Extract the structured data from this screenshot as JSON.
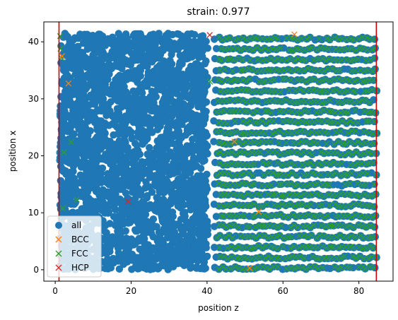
{
  "chart_data": {
    "type": "scatter",
    "title": "strain: 0.977",
    "xlabel": "position z",
    "ylabel": "position x",
    "xlim": [
      -3,
      89
    ],
    "ylim": [
      -2,
      43.5
    ],
    "xticks": [
      0,
      20,
      40,
      60,
      80
    ],
    "yticks": [
      0,
      10,
      20,
      30,
      40
    ],
    "xtick_labels": [
      "0",
      "20",
      "40",
      "60",
      "80"
    ],
    "ytick_labels": [
      "0",
      "10",
      "20",
      "30",
      "40"
    ],
    "grid": false,
    "legend_position": "lower-left",
    "vlines": [
      {
        "x": 1.0,
        "color": "#cc0000"
      },
      {
        "x": 84.6,
        "color": "#cc0000"
      }
    ],
    "disordered_region": {
      "x": [
        1.2,
        40.2
      ],
      "y": [
        0,
        41.5
      ]
    },
    "lattice_region": {
      "x": [
        42,
        84.6
      ],
      "y_start": 0.3,
      "y_end": 41.4,
      "row_spacing": 1.83,
      "row_count": 23,
      "column_spacing": 1.05
    },
    "series": [
      {
        "name": "all",
        "marker": "circle",
        "color": "#1f77b4"
      },
      {
        "name": "BCC",
        "marker": "x",
        "color": "#ff7f0e",
        "points": [
          [
            3.5,
            32.7
          ],
          [
            47.2,
            22.5
          ],
          [
            51.2,
            0.3
          ],
          [
            63.0,
            41.3
          ],
          [
            53.6,
            10.2
          ],
          [
            1.8,
            37.5
          ]
        ]
      },
      {
        "name": "FCC",
        "marker": "x",
        "color": "#2ca02c",
        "points": [
          [
            1.3,
            41.0
          ],
          [
            1.4,
            38.8
          ],
          [
            1.6,
            37.2
          ],
          [
            4.2,
            22.4
          ],
          [
            2.3,
            20.6
          ],
          [
            5.7,
            12.3
          ],
          [
            2.0,
            10.8
          ],
          [
            40.8,
            33.0
          ]
        ]
      },
      {
        "name": "HCP",
        "marker": "x",
        "color": "#d62728",
        "points": [
          [
            19.2,
            12.0
          ],
          [
            40.7,
            41.2
          ]
        ]
      }
    ]
  }
}
